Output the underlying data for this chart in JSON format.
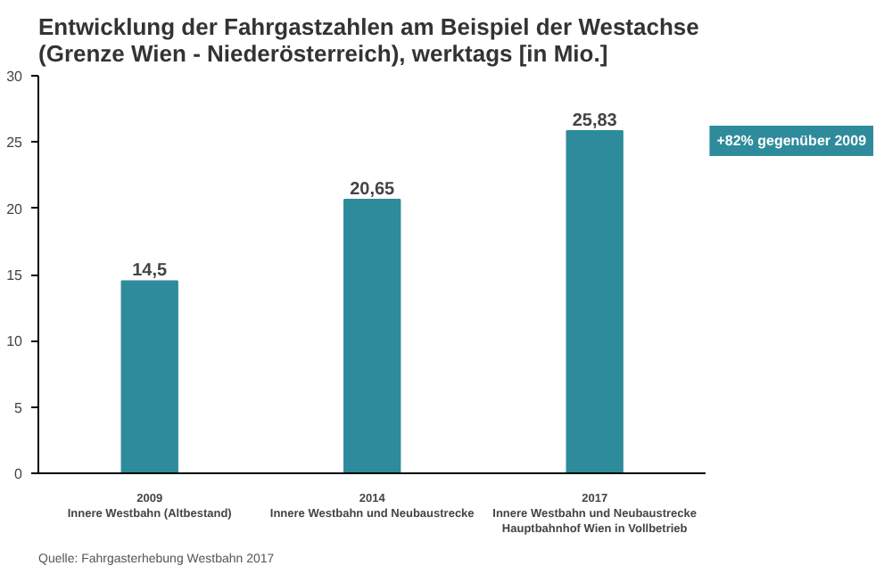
{
  "chart_data": {
    "type": "bar",
    "title": "Entwicklung der Fahrgastzahlen am Beispiel der Westachse (Grenze Wien - Niederösterreich), werktags [in Mio.]",
    "categories": [
      "2009\nInnere Westbahn (Altbestand)",
      "2014\nInnere Westbahn und Neubaustrecke",
      "2017\nInnere Westbahn und Neubaustrecke\nHauptbahnhof Wien in Vollbetrieb"
    ],
    "values": [
      14.5,
      20.65,
      25.83
    ],
    "color": "#2e8b9b",
    "value_labels": [
      "14,5",
      "20,65",
      "25,83"
    ],
    "ylim": [
      0,
      30
    ],
    "yticks": [
      0,
      5,
      10,
      15,
      20,
      25,
      30
    ],
    "grid": false,
    "annotations": [
      "+82% gegenüber 2009",
      "Quelle: Fahrgasterhebung Westbahn 2017"
    ]
  }
}
